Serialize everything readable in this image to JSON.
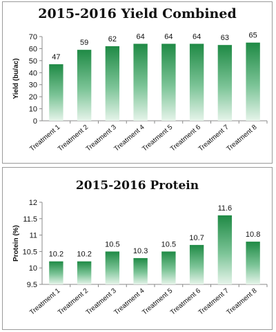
{
  "chart_data": [
    {
      "type": "bar",
      "title": "2015-2016 Yield Combined",
      "xlabel": "",
      "ylabel": "Yield (bu/ac)",
      "categories": [
        "Treatment 1",
        "Treatment 2",
        "Treatment 3",
        "Treatment 4",
        "Treatment 5",
        "Treatment 6",
        "Treatment 7",
        "Treatment 8"
      ],
      "values": [
        47,
        59,
        62,
        64,
        64,
        64,
        63,
        65
      ],
      "data_labels": [
        "47",
        "59",
        "62",
        "64",
        "64",
        "64",
        "63",
        "65"
      ],
      "ylim": [
        0,
        70
      ],
      "yticks": [
        "0",
        "10",
        "20",
        "30",
        "40",
        "50",
        "60",
        "70"
      ],
      "grid": false,
      "legend": "none",
      "bar_color_dark": "#1f8a45",
      "bar_color_light": "#e6f4ea"
    },
    {
      "type": "bar",
      "title": "2015-2016 Protein",
      "xlabel": "",
      "ylabel": "Protein (%)",
      "categories": [
        "Treatment 1",
        "Treatment 2",
        "Treatment 3",
        "Treatment 4",
        "Treatment 5",
        "Treatment 6",
        "Treatment 7",
        "Treatment 8"
      ],
      "values": [
        10.2,
        10.2,
        10.5,
        10.3,
        10.5,
        10.7,
        11.6,
        10.8
      ],
      "data_labels": [
        "10.2",
        "10.2",
        "10.5",
        "10.3",
        "10.5",
        "10.7",
        "11.6",
        "10.8"
      ],
      "ylim": [
        9.5,
        12
      ],
      "yticks": [
        "9.5",
        "10",
        "10.5",
        "11",
        "11.5",
        "12"
      ],
      "grid": false,
      "legend": "none",
      "bar_color_dark": "#1f8a45",
      "bar_color_light": "#e6f4ea"
    }
  ]
}
